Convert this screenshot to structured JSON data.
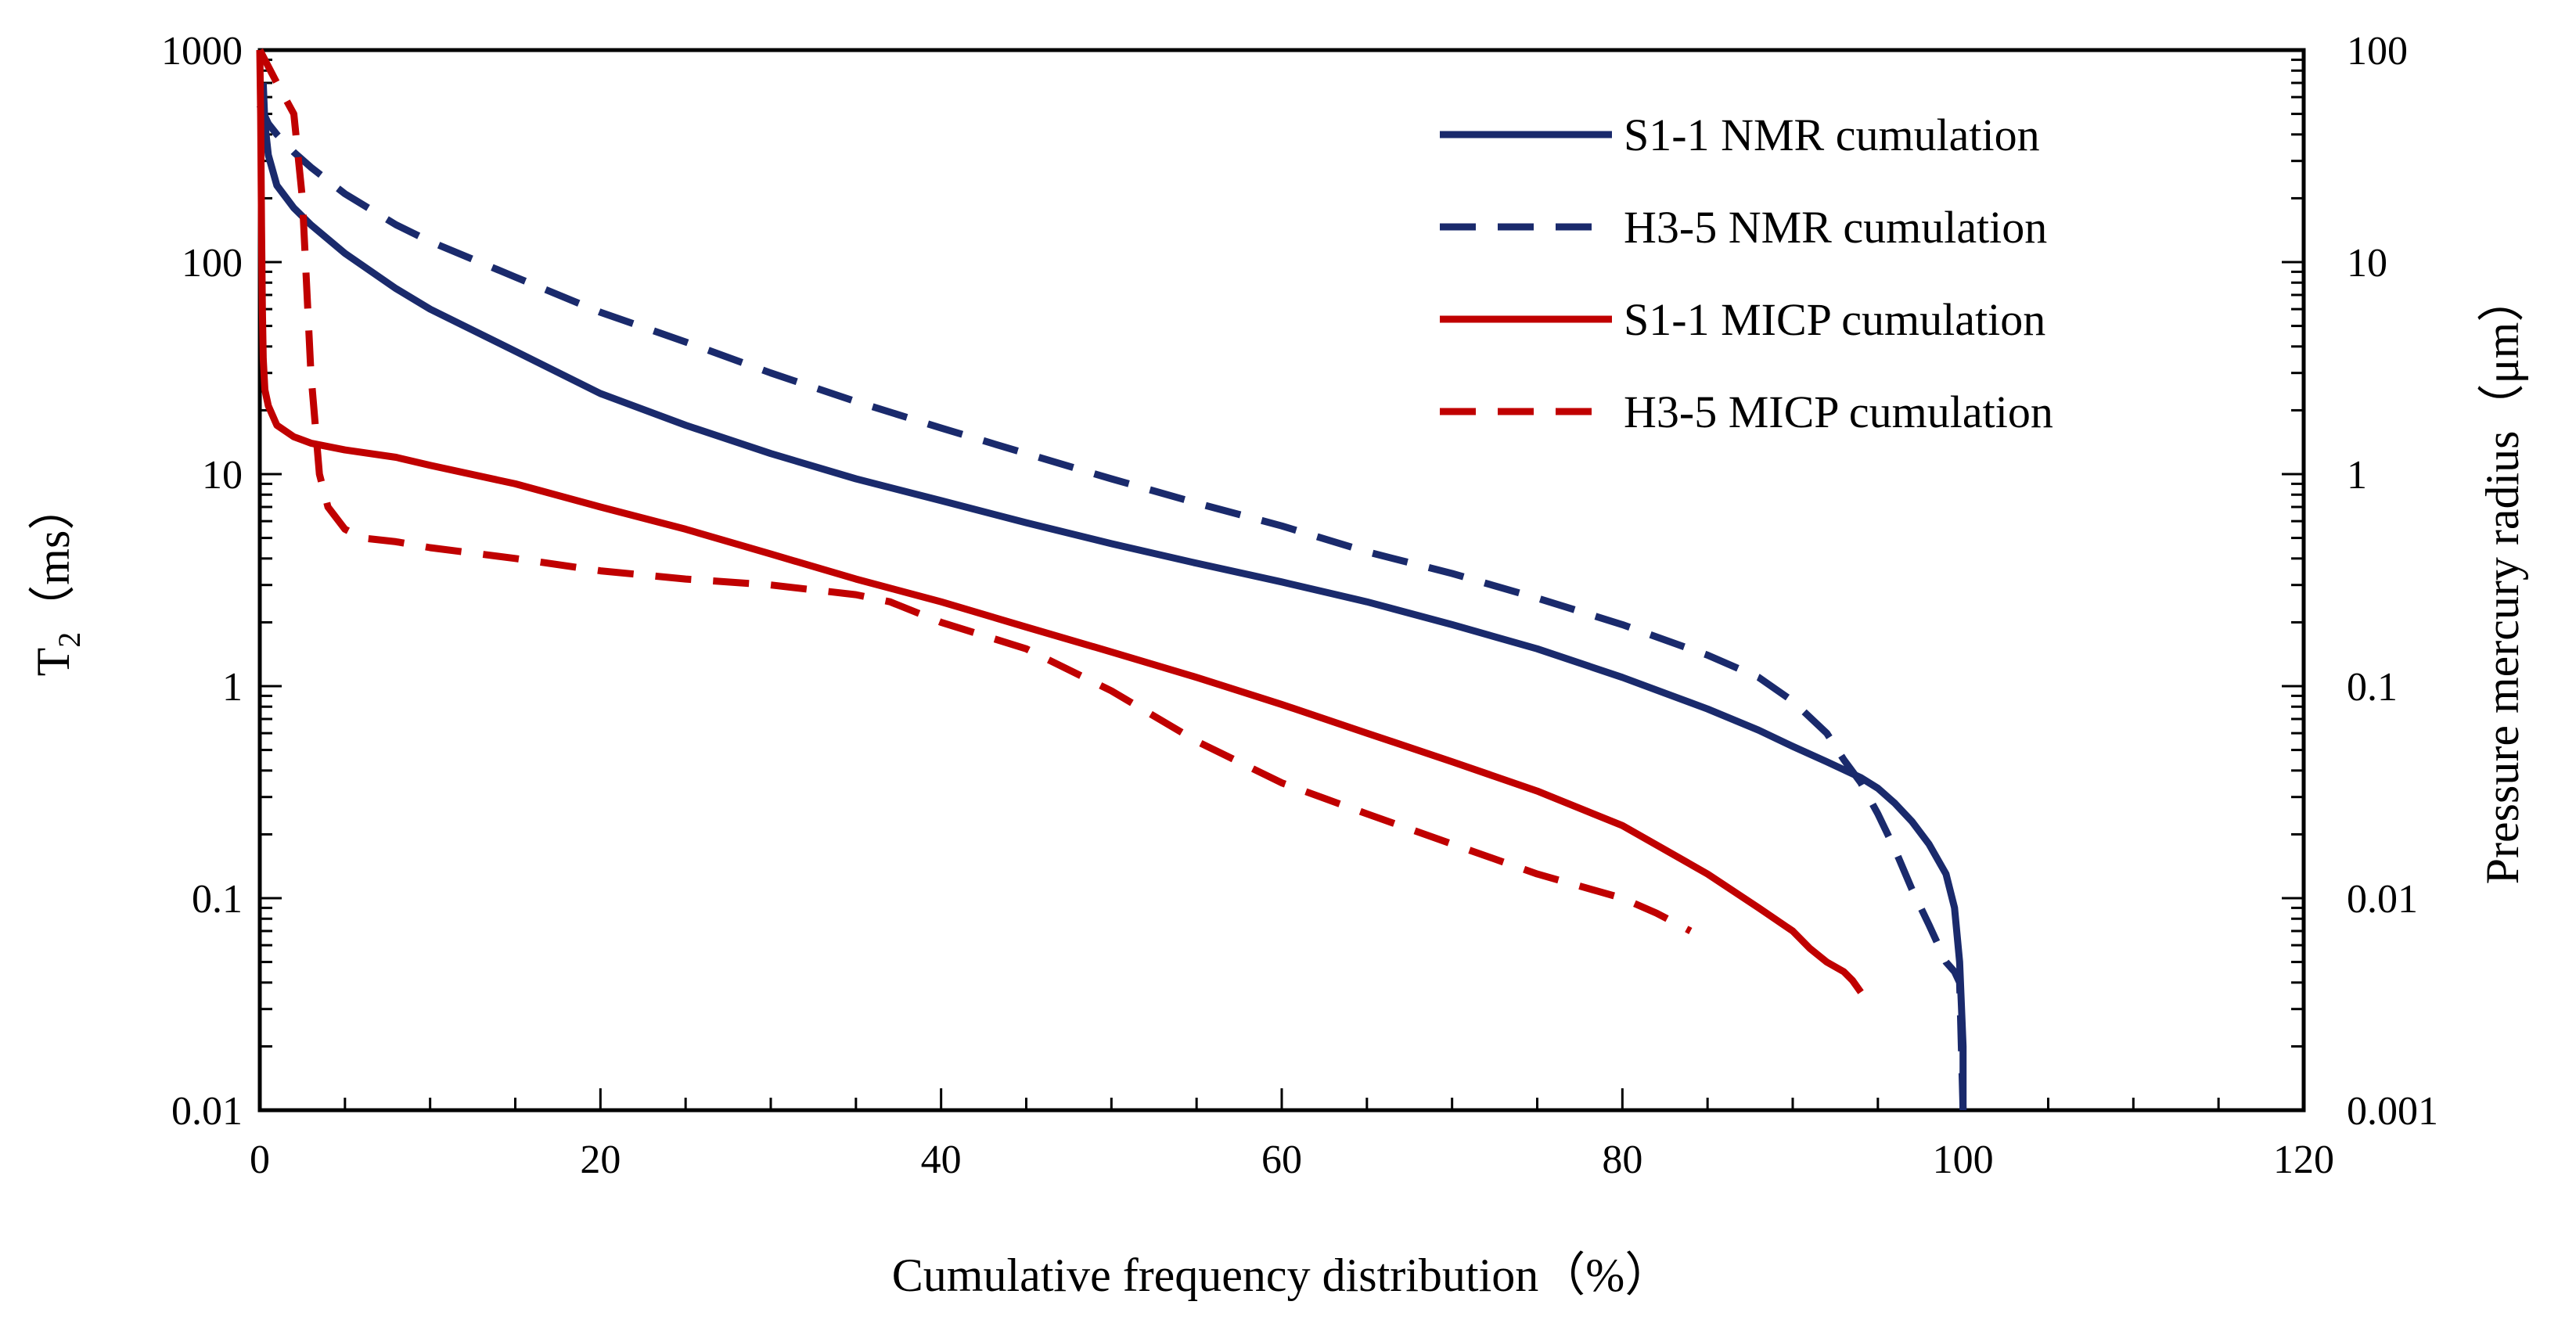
{
  "chart_data": {
    "type": "line",
    "title": "",
    "xlabel": "Cumulative frequency distribution（%）",
    "ylabel_main": "T",
    "ylabel_sub": "2",
    "ylabel_unit": "（ms）",
    "y2label": "Pressure mercury radius（μm）",
    "xlim": [
      0,
      120
    ],
    "ylim": [
      0.01,
      1000
    ],
    "y2lim": [
      0.001,
      100
    ],
    "yscale": "log",
    "x_ticks": [
      "0",
      "20",
      "40",
      "60",
      "80",
      "100",
      "120"
    ],
    "y_ticks": [
      "1000",
      "100",
      "10",
      "1",
      "0.1",
      "0.01"
    ],
    "y2_ticks": [
      "100",
      "10",
      "1",
      "0.1",
      "0.01",
      "0.001"
    ],
    "grid": false,
    "legend_position": "top-right",
    "series": [
      {
        "name": "S1-1 NMR cumulation",
        "color": "#1a2a6c",
        "dash": "solid",
        "axis": "left",
        "x": [
          0.2,
          0.3,
          0.5,
          1,
          2,
          3,
          5,
          8,
          10,
          15,
          20,
          25,
          30,
          35,
          40,
          45,
          50,
          55,
          60,
          65,
          70,
          75,
          80,
          85,
          88,
          90,
          92,
          94,
          95,
          96,
          97,
          98,
          99,
          99.5,
          99.8,
          100,
          100
        ],
        "values": [
          700,
          450,
          320,
          230,
          180,
          150,
          110,
          75,
          60,
          38,
          24,
          17,
          12.5,
          9.5,
          7.5,
          5.9,
          4.7,
          3.8,
          3.1,
          2.5,
          1.95,
          1.5,
          1.1,
          0.78,
          0.62,
          0.52,
          0.44,
          0.37,
          0.33,
          0.28,
          0.23,
          0.18,
          0.13,
          0.09,
          0.05,
          0.02,
          0.01
        ]
      },
      {
        "name": "H3-5 NMR cumulation",
        "color": "#1a2a6c",
        "dash": "dashed",
        "axis": "left",
        "x": [
          0,
          0.5,
          1,
          2,
          3,
          5,
          8,
          10,
          15,
          20,
          25,
          30,
          35,
          40,
          45,
          50,
          55,
          60,
          65,
          70,
          75,
          80,
          85,
          88,
          90,
          92,
          93,
          94,
          95,
          96,
          97,
          98,
          99,
          99.5,
          99.8,
          100
        ],
        "values": [
          550,
          450,
          400,
          330,
          280,
          210,
          150,
          125,
          85,
          58,
          42,
          30,
          22,
          16.5,
          12.5,
          9.5,
          7.3,
          5.7,
          4.3,
          3.4,
          2.6,
          1.95,
          1.4,
          1.1,
          0.85,
          0.6,
          0.45,
          0.35,
          0.25,
          0.17,
          0.11,
          0.075,
          0.05,
          0.045,
          0.04,
          0.01
        ]
      },
      {
        "name": "S1-1 MICP cumulation",
        "color": "#c00000",
        "dash": "solid",
        "axis": "left",
        "x": [
          0,
          0.05,
          0.1,
          0.15,
          0.2,
          0.3,
          0.5,
          1,
          2,
          3,
          5,
          8,
          10,
          15,
          20,
          25,
          30,
          35,
          40,
          45,
          50,
          55,
          60,
          65,
          70,
          75,
          80,
          85,
          88,
          90,
          91,
          92,
          93,
          93.5,
          94
        ],
        "values": [
          1000,
          500,
          150,
          60,
          35,
          25,
          21,
          17,
          15,
          14,
          13,
          12,
          11,
          9,
          7,
          5.5,
          4.2,
          3.2,
          2.5,
          1.9,
          1.45,
          1.1,
          0.82,
          0.6,
          0.44,
          0.32,
          0.22,
          0.13,
          0.09,
          0.07,
          0.058,
          0.05,
          0.045,
          0.041,
          0.036
        ]
      },
      {
        "name": "H3-5 MICP cumulation",
        "color": "#c00000",
        "dash": "dashed",
        "axis": "left",
        "x": [
          0,
          1,
          2,
          2.5,
          3,
          3.5,
          4,
          5,
          6,
          8,
          10,
          15,
          20,
          25,
          30,
          35,
          37,
          40,
          45,
          50,
          55,
          60,
          65,
          70,
          75,
          80,
          82,
          84
        ],
        "values": [
          1000,
          700,
          500,
          200,
          30,
          10,
          7,
          5.5,
          5,
          4.8,
          4.5,
          4,
          3.5,
          3.2,
          3,
          2.7,
          2.5,
          2,
          1.5,
          0.95,
          0.55,
          0.35,
          0.25,
          0.18,
          0.13,
          0.1,
          0.085,
          0.07
        ]
      }
    ]
  }
}
